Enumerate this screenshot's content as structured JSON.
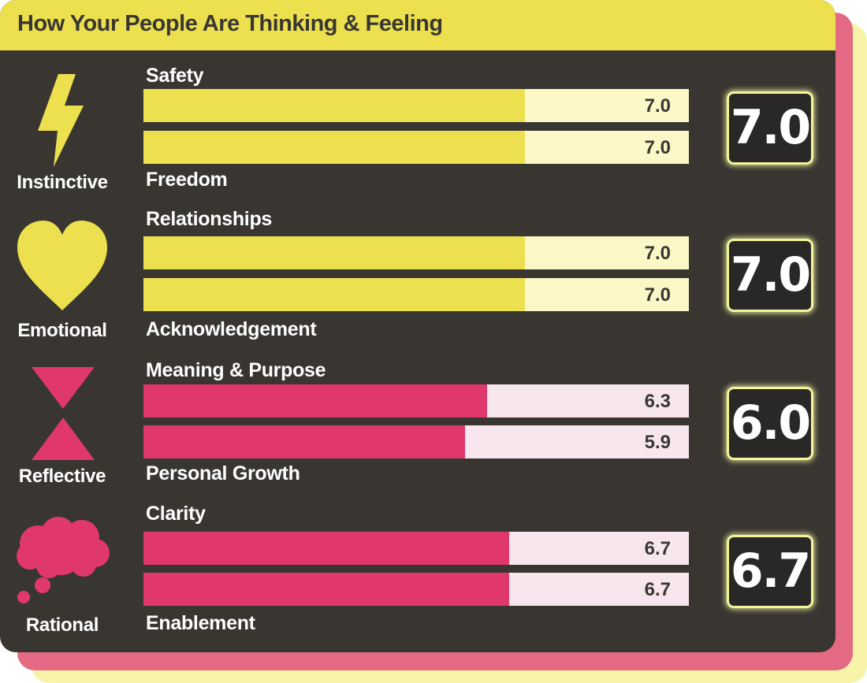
{
  "title": "How Your People Are Thinking & Feeling",
  "colors": {
    "header": "#ece04e",
    "panel": "#393632",
    "yellow_fill": "#ece04e",
    "yellow_track": "#fbf7c6",
    "pink_fill": "#e0386d",
    "pink_track": "#f8e6ef",
    "score_glow": "#f3f59c"
  },
  "categories": [
    {
      "name": "Instinctive",
      "icon": "lightning-icon",
      "score": "7.0",
      "bars": [
        {
          "label": "Safety",
          "value_text": "7.0"
        },
        {
          "label": "Freedom",
          "value_text": "7.0"
        }
      ]
    },
    {
      "name": "Emotional",
      "icon": "heart-icon",
      "score": "7.0",
      "bars": [
        {
          "label": "Relationships",
          "value_text": "7.0"
        },
        {
          "label": "Acknowledgement",
          "value_text": "7.0"
        }
      ]
    },
    {
      "name": "Reflective",
      "icon": "hourglass-icon",
      "score": "6.0",
      "bars": [
        {
          "label": "Meaning & Purpose",
          "value_text": "6.3"
        },
        {
          "label": "Personal Growth",
          "value_text": "5.9"
        }
      ]
    },
    {
      "name": "Rational",
      "icon": "thought-cloud-icon",
      "score": "6.7",
      "bars": [
        {
          "label": "Clarity",
          "value_text": "6.7"
        },
        {
          "label": "Enablement",
          "value_text": "6.7"
        }
      ]
    }
  ],
  "chart_data": {
    "type": "bar",
    "title": "How Your People Are Thinking & Feeling",
    "orientation": "horizontal",
    "xlim": [
      0,
      10
    ],
    "categories": [
      "Safety",
      "Freedom",
      "Relationships",
      "Acknowledgement",
      "Meaning & Purpose",
      "Personal Growth",
      "Clarity",
      "Enablement"
    ],
    "values": [
      7.0,
      7.0,
      7.0,
      7.0,
      6.3,
      5.9,
      6.7,
      6.7
    ],
    "groups": [
      {
        "name": "Instinctive",
        "members": [
          "Safety",
          "Freedom"
        ],
        "score": 7.0
      },
      {
        "name": "Emotional",
        "members": [
          "Relationships",
          "Acknowledgement"
        ],
        "score": 7.0
      },
      {
        "name": "Reflective",
        "members": [
          "Meaning & Purpose",
          "Personal Growth"
        ],
        "score": 6.0
      },
      {
        "name": "Rational",
        "members": [
          "Clarity",
          "Enablement"
        ],
        "score": 6.7
      }
    ]
  }
}
